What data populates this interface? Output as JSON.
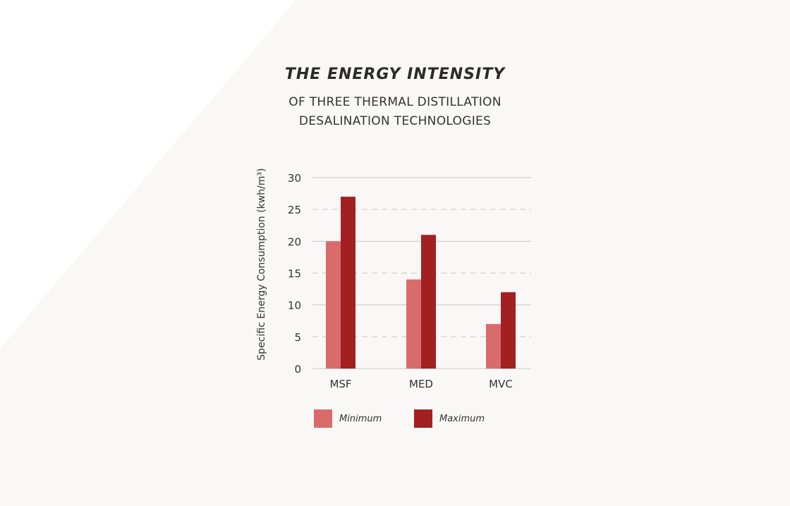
{
  "header": {
    "title": "THE ENERGY INTENSITY",
    "subtitle_line1": "OF THREE THERMAL DISTILLATION",
    "subtitle_line2": "DESALINATION TECHNOLOGIES"
  },
  "colors": {
    "minimum": "#d96b6b",
    "maximum": "#a32020",
    "grid": "#c8c8c8",
    "axis_text": "#333333",
    "background_shape": "#f9f8f7"
  },
  "chart_data": {
    "type": "bar",
    "title": "THE ENERGY INTENSITY",
    "subtitle": "OF THREE THERMAL DISTILLATION DESALINATION TECHNOLOGIES",
    "categories": [
      "MSF",
      "MED",
      "MVC"
    ],
    "series": [
      {
        "name": "Minimum",
        "values": [
          20,
          14,
          7
        ]
      },
      {
        "name": "Maximum",
        "values": [
          27,
          21,
          12
        ]
      }
    ],
    "xlabel": "",
    "ylabel": "Specific Energy Consumption (kwh/m³)",
    "ylim": [
      0,
      30
    ],
    "yticks": [
      0,
      5,
      10,
      15,
      20,
      25,
      30
    ],
    "grid": true,
    "legend": "bottom"
  }
}
